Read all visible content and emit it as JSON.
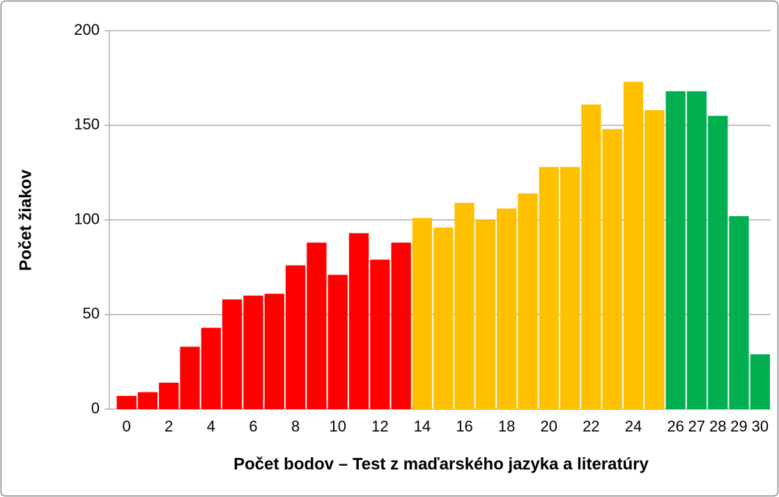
{
  "chart_data": {
    "type": "bar",
    "x_label": "Počet bodov – Test z maďarského jazyka a literatúry",
    "y_label": "Počet žiakov",
    "categories": [
      "0",
      null,
      "2",
      null,
      "4",
      null,
      "6",
      null,
      "8",
      null,
      "10",
      null,
      "12",
      null,
      "14",
      null,
      "16",
      null,
      "18",
      null,
      "20",
      null,
      "22",
      null,
      "24",
      null,
      "26",
      "27",
      "28",
      "29",
      "30"
    ],
    "values": [
      7,
      9,
      14,
      33,
      43,
      58,
      60,
      61,
      76,
      88,
      71,
      93,
      79,
      88,
      101,
      96,
      109,
      100,
      106,
      114,
      128,
      128,
      161,
      148,
      173,
      158,
      168,
      168,
      155,
      102,
      29
    ],
    "colors": [
      "#ff0000",
      "#ff0000",
      "#ff0000",
      "#ff0000",
      "#ff0000",
      "#ff0000",
      "#ff0000",
      "#ff0000",
      "#ff0000",
      "#ff0000",
      "#ff0000",
      "#ff0000",
      "#ff0000",
      "#ff0000",
      "#ffc000",
      "#ffc000",
      "#ffc000",
      "#ffc000",
      "#ffc000",
      "#ffc000",
      "#ffc000",
      "#ffc000",
      "#ffc000",
      "#ffc000",
      "#ffc000",
      "#ffc000",
      "#00b050",
      "#00b050",
      "#00b050",
      "#00b050",
      "#00b050"
    ],
    "ylim": [
      0,
      200
    ],
    "yticks": [
      0,
      50,
      100,
      150,
      200
    ],
    "grid": true
  }
}
